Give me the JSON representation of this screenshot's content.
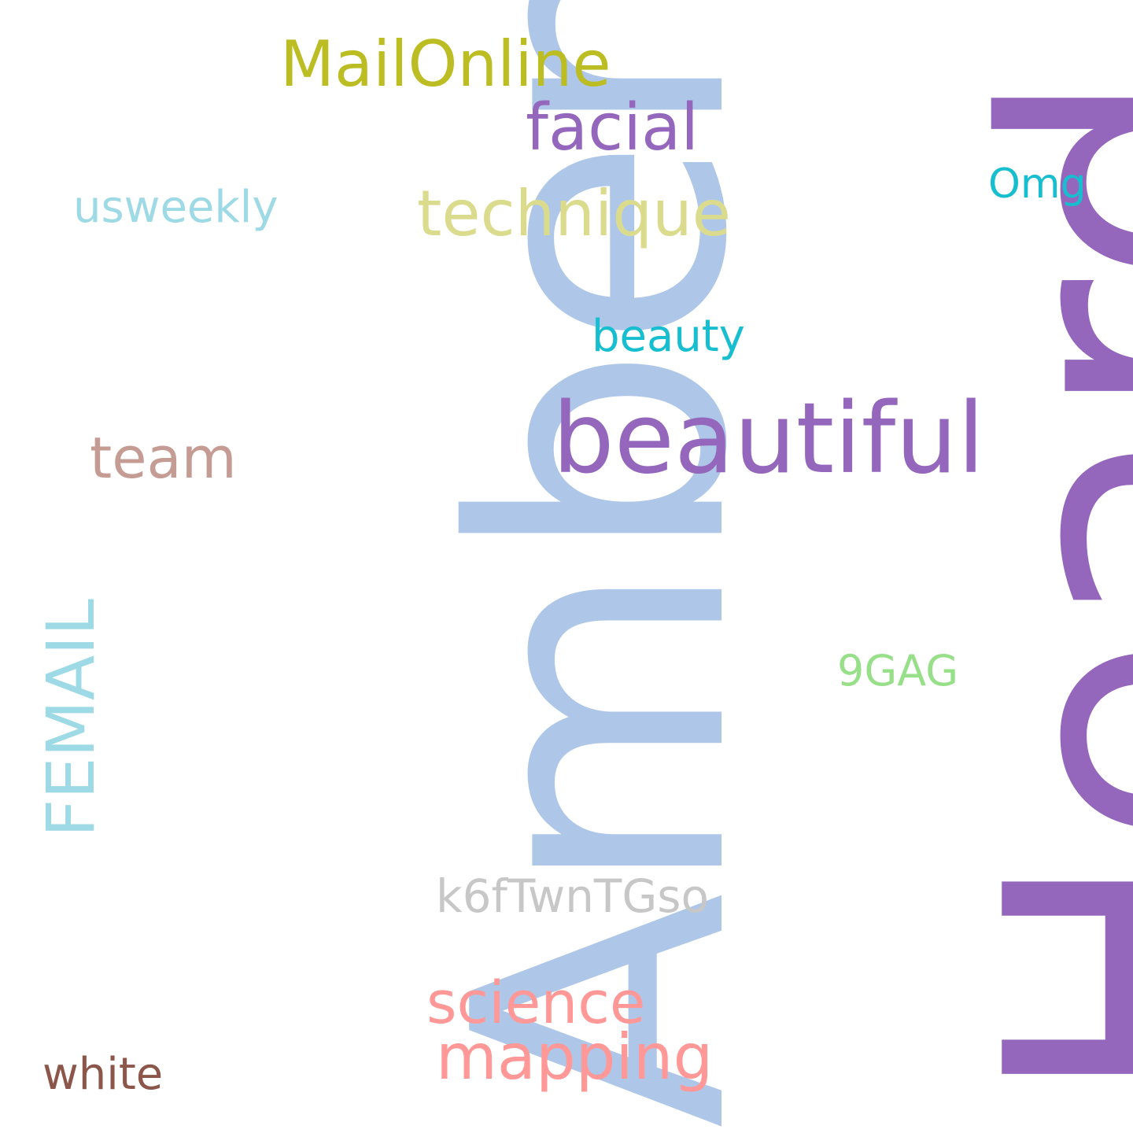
{
  "wordcloud": {
    "words": [
      {
        "text": "Amber",
        "color": "#aec7e8",
        "orientation": "vertical"
      },
      {
        "text": "Heard",
        "color": "#9467bd",
        "orientation": "vertical"
      },
      {
        "text": "beautiful",
        "color": "#9467bd",
        "orientation": "horizontal"
      },
      {
        "text": "FEMAIL",
        "color": "#9edae5",
        "orientation": "vertical"
      },
      {
        "text": "MailOnline",
        "color": "#bcbd22",
        "orientation": "horizontal"
      },
      {
        "text": "facial",
        "color": "#9467bd",
        "orientation": "horizontal"
      },
      {
        "text": "technique",
        "color": "#dbdb8d",
        "orientation": "horizontal"
      },
      {
        "text": "mapping",
        "color": "#ff9896",
        "orientation": "horizontal"
      },
      {
        "text": "science",
        "color": "#ff9896",
        "orientation": "horizontal"
      },
      {
        "text": "team",
        "color": "#c49c94",
        "orientation": "horizontal"
      },
      {
        "text": "k6fTwnTGso",
        "color": "#c7c7c7",
        "orientation": "horizontal"
      },
      {
        "text": "usweekly",
        "color": "#9edae5",
        "orientation": "horizontal"
      },
      {
        "text": "beauty",
        "color": "#17becf",
        "orientation": "horizontal"
      },
      {
        "text": "white",
        "color": "#8c564b",
        "orientation": "horizontal"
      },
      {
        "text": "9GAG",
        "color": "#98df8a",
        "orientation": "horizontal"
      },
      {
        "text": "Omg",
        "color": "#17becf",
        "orientation": "horizontal"
      }
    ]
  }
}
